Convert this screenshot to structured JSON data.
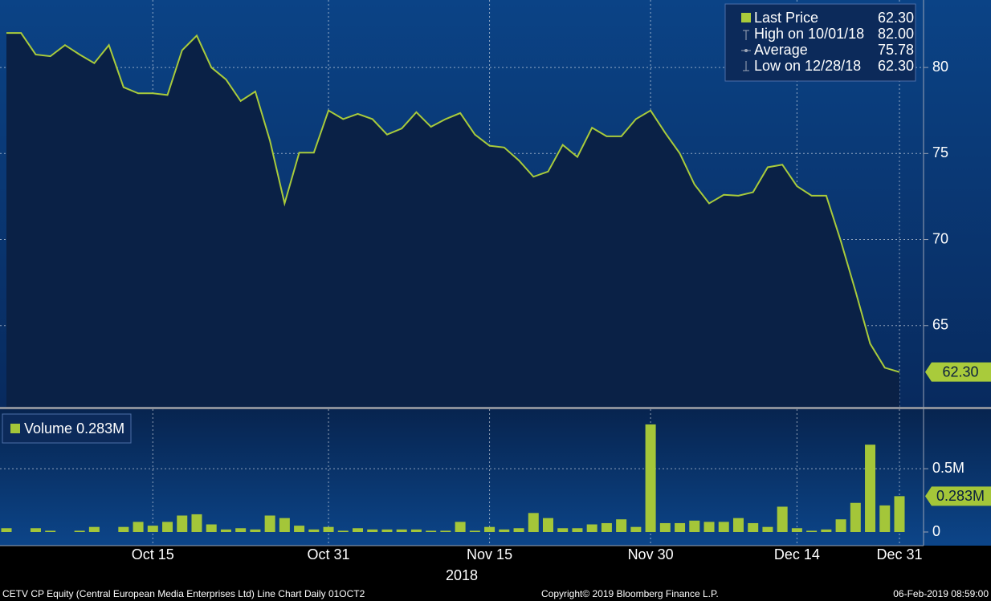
{
  "chart_data": [
    {
      "type": "line",
      "series": [
        {
          "name": "Last Price",
          "color": "#a9cb3b",
          "last_label": "62.30",
          "values": [
            82.0,
            82.0,
            80.75,
            80.65,
            81.3,
            80.75,
            80.25,
            81.3,
            78.85,
            78.5,
            78.5,
            78.4,
            81.0,
            81.85,
            80.0,
            79.3,
            78.05,
            78.6,
            75.75,
            72.1,
            75.05,
            75.05,
            77.5,
            77.0,
            77.3,
            77.0,
            76.1,
            76.45,
            77.4,
            76.55,
            77.0,
            77.35,
            76.1,
            75.45,
            75.35,
            74.6,
            73.65,
            73.95,
            75.5,
            74.8,
            76.5,
            76.0,
            76.0,
            77.0,
            77.5,
            76.2,
            75.0,
            73.2,
            72.1,
            72.6,
            72.55,
            72.75,
            74.2,
            74.35,
            73.1,
            72.55,
            72.55,
            69.9,
            67.0,
            63.95,
            62.55,
            62.3
          ]
        }
      ],
      "stats": [
        {
          "name": "High on 10/01/18",
          "value": "82.00"
        },
        {
          "name": "Average",
          "value": "75.78"
        },
        {
          "name": "Low on 12/28/18",
          "value": "62.30"
        }
      ],
      "ylim": [
        60.28,
        83.92
      ],
      "yticks": [
        65,
        70,
        75,
        80
      ],
      "grid": true,
      "legend_position": "upper right"
    },
    {
      "type": "bar",
      "categories": [
        null,
        null,
        null,
        null,
        null,
        null,
        null,
        null,
        null,
        null,
        "Oct 15",
        null,
        null,
        null,
        null,
        null,
        null,
        null,
        null,
        null,
        null,
        null,
        "Oct 31",
        null,
        null,
        null,
        null,
        null,
        null,
        null,
        null,
        null,
        null,
        "Nov 15",
        null,
        null,
        null,
        null,
        null,
        null,
        null,
        null,
        null,
        null,
        "Nov 30",
        null,
        null,
        null,
        null,
        null,
        null,
        null,
        null,
        null,
        "Dec 14",
        null,
        null,
        null,
        null,
        null,
        null,
        "Dec 31"
      ],
      "series": [
        {
          "name": "Volume",
          "color": "#a4c639",
          "last_label": "0.283M",
          "values": [
            0.03,
            0,
            0.03,
            0.01,
            0,
            0.01,
            0.04,
            0,
            0.04,
            0.08,
            0.05,
            0.08,
            0.13,
            0.14,
            0.06,
            0.02,
            0.03,
            0.02,
            0.13,
            0.11,
            0.05,
            0.02,
            0.04,
            0.01,
            0.03,
            0.02,
            0.02,
            0.02,
            0.02,
            0.01,
            0.01,
            0.08,
            0.01,
            0.04,
            0.02,
            0.03,
            0.15,
            0.11,
            0.03,
            0.03,
            0.06,
            0.07,
            0.1,
            0.04,
            0.85,
            0.07,
            0.07,
            0.09,
            0.08,
            0.08,
            0.11,
            0.07,
            0.04,
            0.2,
            0.03,
            0.01,
            0.02,
            0.1,
            0.23,
            0.69,
            0.21,
            0.283
          ]
        }
      ],
      "xlabel": "2018",
      "ylim": [
        0,
        0.97
      ],
      "yticks": [
        0,
        {
          "value": 0.5,
          "label": "0.5M"
        }
      ],
      "grid": true,
      "legend_position": "upper left"
    }
  ],
  "footer": {
    "description": "CETV CP Equity (Central European Media Enterprises Ltd) Line Chart  Daily 01OCT2",
    "copyright": "Copyright© 2019 Bloomberg Finance L.P.",
    "timestamp": "06-Feb-2019 08:59:00"
  }
}
